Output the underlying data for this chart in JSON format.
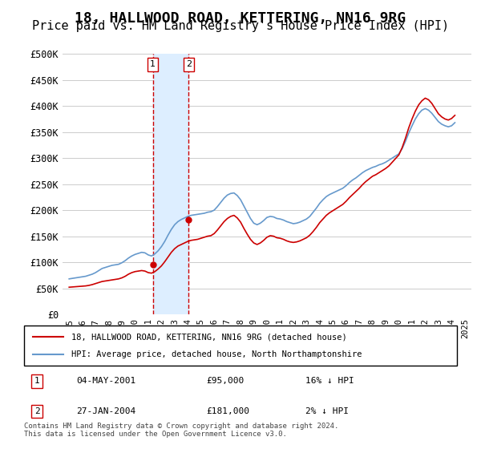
{
  "title": "18, HALLWOOD ROAD, KETTERING, NN16 9RG",
  "subtitle": "Price paid vs. HM Land Registry's House Price Index (HPI)",
  "title_fontsize": 13,
  "subtitle_fontsize": 11,
  "ylabel_ticks": [
    "£0",
    "£50K",
    "£100K",
    "£150K",
    "£200K",
    "£250K",
    "£300K",
    "£350K",
    "£400K",
    "£450K",
    "£500K"
  ],
  "ytick_values": [
    0,
    50000,
    100000,
    150000,
    200000,
    250000,
    300000,
    350000,
    400000,
    450000,
    500000
  ],
  "ylim": [
    0,
    500000
  ],
  "xlim_start": 1994.5,
  "xlim_end": 2025.5,
  "hpi_color": "#6699cc",
  "price_color": "#cc0000",
  "purchase_dates": [
    2001.34,
    2004.07
  ],
  "purchase_prices": [
    95000,
    181000
  ],
  "purchase_labels": [
    "1",
    "2"
  ],
  "shade_color": "#ddeeff",
  "vline_color": "#cc0000",
  "legend_line1": "18, HALLWOOD ROAD, KETTERING, NN16 9RG (detached house)",
  "legend_line2": "HPI: Average price, detached house, North Northamptonshire",
  "table_rows": [
    {
      "label": "1",
      "date": "04-MAY-2001",
      "price": "£95,000",
      "hpi": "16% ↓ HPI"
    },
    {
      "label": "2",
      "date": "27-JAN-2004",
      "price": "£181,000",
      "hpi": "2% ↓ HPI"
    }
  ],
  "footnote": "Contains HM Land Registry data © Crown copyright and database right 2024.\nThis data is licensed under the Open Government Licence v3.0.",
  "hpi_data_x": [
    1995,
    1995.25,
    1995.5,
    1995.75,
    1996,
    1996.25,
    1996.5,
    1996.75,
    1997,
    1997.25,
    1997.5,
    1997.75,
    1998,
    1998.25,
    1998.5,
    1998.75,
    1999,
    1999.25,
    1999.5,
    1999.75,
    2000,
    2000.25,
    2000.5,
    2000.75,
    2001,
    2001.25,
    2001.5,
    2001.75,
    2002,
    2002.25,
    2002.5,
    2002.75,
    2003,
    2003.25,
    2003.5,
    2003.75,
    2004,
    2004.25,
    2004.5,
    2004.75,
    2005,
    2005.25,
    2005.5,
    2005.75,
    2006,
    2006.25,
    2006.5,
    2006.75,
    2007,
    2007.25,
    2007.5,
    2007.75,
    2008,
    2008.25,
    2008.5,
    2008.75,
    2009,
    2009.25,
    2009.5,
    2009.75,
    2010,
    2010.25,
    2010.5,
    2010.75,
    2011,
    2011.25,
    2011.5,
    2011.75,
    2012,
    2012.25,
    2012.5,
    2012.75,
    2013,
    2013.25,
    2013.5,
    2013.75,
    2014,
    2014.25,
    2014.5,
    2014.75,
    2015,
    2015.25,
    2015.5,
    2015.75,
    2016,
    2016.25,
    2016.5,
    2016.75,
    2017,
    2017.25,
    2017.5,
    2017.75,
    2018,
    2018.25,
    2018.5,
    2018.75,
    2019,
    2019.25,
    2019.5,
    2019.75,
    2020,
    2020.25,
    2020.5,
    2020.75,
    2021,
    2021.25,
    2021.5,
    2021.75,
    2022,
    2022.25,
    2022.5,
    2022.75,
    2023,
    2023.25,
    2023.5,
    2023.75,
    2024,
    2024.25
  ],
  "hpi_data_y": [
    68000,
    69000,
    70000,
    71000,
    72000,
    73000,
    75000,
    77000,
    80000,
    84000,
    88000,
    90000,
    92000,
    94000,
    95000,
    96000,
    99000,
    103000,
    108000,
    112000,
    115000,
    117000,
    119000,
    118000,
    114000,
    112000,
    116000,
    122000,
    130000,
    140000,
    152000,
    163000,
    172000,
    178000,
    182000,
    185000,
    188000,
    190000,
    191000,
    192000,
    193000,
    194000,
    196000,
    197000,
    200000,
    207000,
    215000,
    223000,
    229000,
    232000,
    233000,
    228000,
    220000,
    208000,
    196000,
    184000,
    175000,
    172000,
    175000,
    180000,
    186000,
    188000,
    187000,
    184000,
    183000,
    181000,
    178000,
    176000,
    174000,
    175000,
    177000,
    180000,
    183000,
    188000,
    196000,
    204000,
    213000,
    220000,
    226000,
    230000,
    233000,
    236000,
    239000,
    242000,
    247000,
    253000,
    258000,
    262000,
    267000,
    272000,
    276000,
    279000,
    282000,
    284000,
    287000,
    289000,
    292000,
    296000,
    300000,
    304000,
    308000,
    318000,
    332000,
    348000,
    362000,
    375000,
    385000,
    392000,
    395000,
    392000,
    386000,
    378000,
    370000,
    365000,
    362000,
    360000,
    362000,
    368000
  ],
  "price_data_x": [
    1995,
    1995.25,
    1995.5,
    1995.75,
    1996,
    1996.25,
    1996.5,
    1996.75,
    1997,
    1997.25,
    1997.5,
    1997.75,
    1998,
    1998.25,
    1998.5,
    1998.75,
    1999,
    1999.25,
    1999.5,
    1999.75,
    2000,
    2000.25,
    2000.5,
    2000.75,
    2001,
    2001.25,
    2001.5,
    2001.75,
    2002,
    2002.25,
    2002.5,
    2002.75,
    2003,
    2003.25,
    2003.5,
    2003.75,
    2004,
    2004.25,
    2004.5,
    2004.75,
    2005,
    2005.25,
    2005.5,
    2005.75,
    2006,
    2006.25,
    2006.5,
    2006.75,
    2007,
    2007.25,
    2007.5,
    2007.75,
    2008,
    2008.25,
    2008.5,
    2008.75,
    2009,
    2009.25,
    2009.5,
    2009.75,
    2010,
    2010.25,
    2010.5,
    2010.75,
    2011,
    2011.25,
    2011.5,
    2011.75,
    2012,
    2012.25,
    2012.5,
    2012.75,
    2013,
    2013.25,
    2013.5,
    2013.75,
    2014,
    2014.25,
    2014.5,
    2014.75,
    2015,
    2015.25,
    2015.5,
    2015.75,
    2016,
    2016.25,
    2016.5,
    2016.75,
    2017,
    2017.25,
    2017.5,
    2017.75,
    2018,
    2018.25,
    2018.5,
    2018.75,
    2019,
    2019.25,
    2019.5,
    2019.75,
    2020,
    2020.25,
    2020.5,
    2020.75,
    2021,
    2021.25,
    2021.5,
    2021.75,
    2022,
    2022.25,
    2022.5,
    2022.75,
    2023,
    2023.25,
    2023.5,
    2023.75,
    2024,
    2024.25
  ],
  "price_data_y": [
    52000,
    52500,
    53000,
    53500,
    54000,
    54500,
    55500,
    57000,
    59000,
    61000,
    63000,
    64000,
    65000,
    66000,
    67000,
    68000,
    70000,
    73000,
    77000,
    80000,
    82000,
    83000,
    84000,
    83000,
    80000,
    79000,
    82000,
    87000,
    93000,
    101000,
    110000,
    119000,
    126000,
    131000,
    134000,
    137000,
    140000,
    142000,
    143000,
    144000,
    146000,
    148000,
    150000,
    151000,
    155000,
    162000,
    170000,
    178000,
    184000,
    188000,
    190000,
    185000,
    177000,
    165000,
    154000,
    144000,
    137000,
    134000,
    137000,
    142000,
    148000,
    151000,
    150000,
    147000,
    146000,
    144000,
    141000,
    139000,
    138000,
    139000,
    141000,
    144000,
    147000,
    152000,
    159000,
    167000,
    176000,
    183000,
    190000,
    195000,
    199000,
    203000,
    207000,
    211000,
    217000,
    224000,
    230000,
    236000,
    242000,
    249000,
    255000,
    260000,
    265000,
    268000,
    272000,
    276000,
    280000,
    285000,
    292000,
    299000,
    306000,
    320000,
    338000,
    358000,
    375000,
    390000,
    402000,
    410000,
    415000,
    412000,
    405000,
    395000,
    385000,
    379000,
    375000,
    373000,
    376000,
    382000
  ]
}
